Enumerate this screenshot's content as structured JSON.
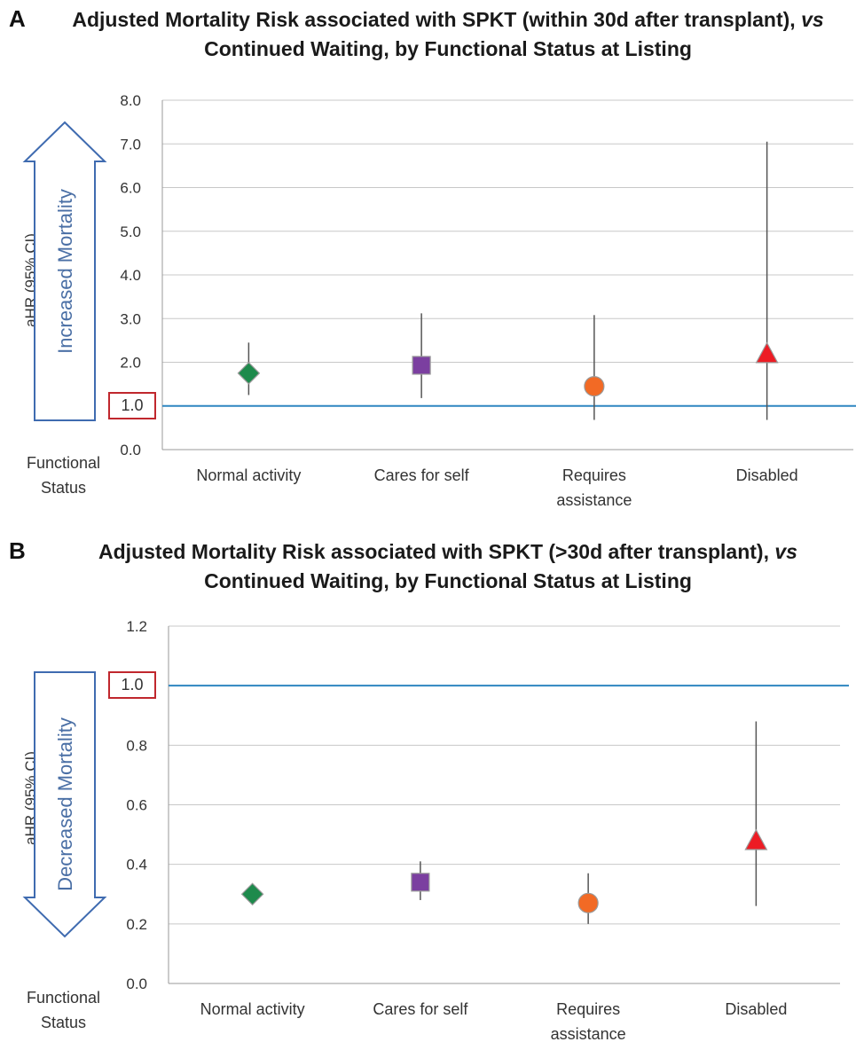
{
  "chart_data": [
    {
      "type": "scatter",
      "panel_label": "A",
      "title_prefix": "Adjusted Mortality Risk associated with SPKT (within 30d after transplant), ",
      "title_vs": "vs",
      "title_suffix": " Continued Waiting, by Functional Status at Listing",
      "ylabel": "aHR (95% CI)",
      "arrow_label": "Increased Mortality",
      "arrow_direction": "up",
      "xlabel": "Functional Status",
      "reference_line": 1.0,
      "reference_label": "1.0",
      "ylim": [
        0,
        8
      ],
      "yticks": [
        "0.0",
        "1.0",
        "2.0",
        "3.0",
        "4.0",
        "5.0",
        "6.0",
        "7.0",
        "8.0"
      ],
      "ytick_values": [
        0,
        1,
        2,
        3,
        4,
        5,
        6,
        7,
        8
      ],
      "grid": true,
      "categories": [
        "Normal activity",
        "Cares for self",
        "Requires assistance",
        "Disabled"
      ],
      "points": [
        {
          "category": "Normal activity",
          "value": 1.75,
          "lower": 1.25,
          "upper": 2.45,
          "marker": "diamond",
          "color": "#1e8a4c"
        },
        {
          "category": "Cares for self",
          "value": 1.93,
          "lower": 1.18,
          "upper": 3.12,
          "marker": "square",
          "color": "#7b3fa0"
        },
        {
          "category": "Requires assistance",
          "value": 1.45,
          "lower": 0.68,
          "upper": 3.08,
          "marker": "circle",
          "color": "#f26a25"
        },
        {
          "category": "Disabled",
          "value": 2.2,
          "lower": 0.68,
          "upper": 7.05,
          "marker": "triangle",
          "color": "#ed1c24"
        }
      ]
    },
    {
      "type": "scatter",
      "panel_label": "B",
      "title_prefix": "Adjusted Mortality Risk associated with SPKT (>30d after transplant), ",
      "title_vs": "vs",
      "title_suffix": " Continued Waiting, by Functional Status at Listing",
      "ylabel": "aHR (95% CI)",
      "arrow_label": "Decreased Mortality",
      "arrow_direction": "down",
      "xlabel": "Functional Status",
      "reference_line": 1.0,
      "reference_label": "1.0",
      "ylim": [
        0,
        1.2
      ],
      "yticks": [
        "0.0",
        "0.2",
        "0.4",
        "0.6",
        "0.8",
        "1.0",
        "1.2"
      ],
      "ytick_values": [
        0,
        0.2,
        0.4,
        0.6,
        0.8,
        1.0,
        1.2
      ],
      "grid": true,
      "categories": [
        "Normal activity",
        "Cares for self",
        "Requires assistance",
        "Disabled"
      ],
      "points": [
        {
          "category": "Normal activity",
          "value": 0.3,
          "lower": 0.3,
          "upper": 0.3,
          "marker": "diamond",
          "color": "#1e8a4c"
        },
        {
          "category": "Cares for self",
          "value": 0.34,
          "lower": 0.28,
          "upper": 0.41,
          "marker": "square",
          "color": "#7b3fa0"
        },
        {
          "category": "Requires assistance",
          "value": 0.27,
          "lower": 0.2,
          "upper": 0.37,
          "marker": "circle",
          "color": "#f26a25"
        },
        {
          "category": "Disabled",
          "value": 0.48,
          "lower": 0.26,
          "upper": 0.88,
          "marker": "triangle",
          "color": "#ed1c24"
        }
      ]
    }
  ],
  "colors": {
    "reference_line": "#2e86c1",
    "grid": "#c8c8c8",
    "whisker": "#555555",
    "arrow_outline": "#3f6bb0",
    "arrow_text": "#4a6fa5",
    "ref_box": "#c0272d"
  }
}
